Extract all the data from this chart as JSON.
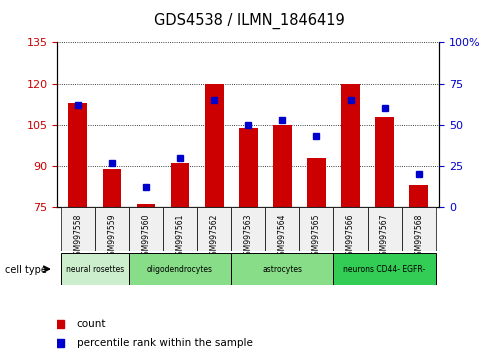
{
  "title": "GDS4538 / ILMN_1846419",
  "samples": [
    "GSM997558",
    "GSM997559",
    "GSM997560",
    "GSM997561",
    "GSM997562",
    "GSM997563",
    "GSM997564",
    "GSM997565",
    "GSM997566",
    "GSM997567",
    "GSM997568"
  ],
  "counts": [
    113,
    89,
    76,
    91,
    120,
    104,
    105,
    93,
    120,
    108,
    83
  ],
  "percentile_ranks": [
    62,
    27,
    12,
    30,
    65,
    50,
    53,
    43,
    65,
    60,
    20
  ],
  "y_min": 75,
  "y_max": 135,
  "y_ticks_left": [
    75,
    90,
    105,
    120,
    135
  ],
  "y_ticks_right": [
    0,
    25,
    50,
    75,
    100
  ],
  "bar_color": "#cc0000",
  "dot_color": "#0000cc",
  "bar_bottom": 75,
  "cell_groups": [
    {
      "label": "neural rosettes",
      "start": 0,
      "end": 1,
      "color": "#cceecc"
    },
    {
      "label": "oligodendrocytes",
      "start": 2,
      "end": 4,
      "color": "#88dd88"
    },
    {
      "label": "astrocytes",
      "start": 5,
      "end": 7,
      "color": "#88dd88"
    },
    {
      "label": "neurons CD44- EGFR-",
      "start": 8,
      "end": 10,
      "color": "#33cc55"
    }
  ],
  "xlabel_color": "#cc0000",
  "ylabel_right_color": "#0000cc",
  "legend_count_color": "#cc0000",
  "legend_pct_color": "#0000cc",
  "bg_color": "#f0f0f0"
}
